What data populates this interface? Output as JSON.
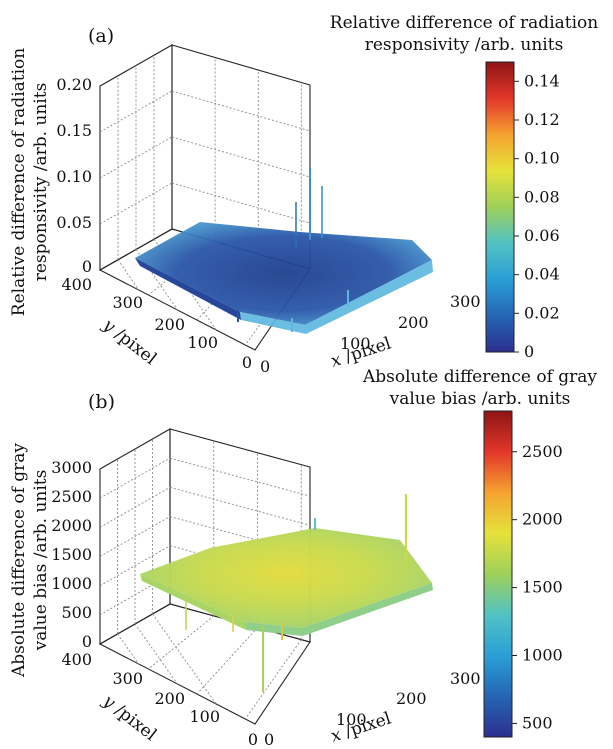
{
  "colors": {
    "colormap": [
      "#2c2f8f",
      "#2566b4",
      "#2a9fd6",
      "#52c2c4",
      "#9fd05a",
      "#e6e23a",
      "#f5a230",
      "#e2362a",
      "#8e1414"
    ],
    "panel_a_surface_main": "#2a4ea0",
    "panel_a_surface_edge": "#5bb7de",
    "panel_b_surface_main": "#b9d95a",
    "panel_b_surface_edge": "#7cc7a0"
  },
  "chart_data": [
    {
      "panel": "(a)",
      "type": "surface",
      "colorbar_title": [
        "Relative difference of radiation",
        "responsivity /arb. units"
      ],
      "zlabel": [
        "Relative difference of radiation",
        "responsivity /arb. units"
      ],
      "xlabel_var": "x",
      "xlabel_unit": " /pixel",
      "ylabel_var": "y",
      "ylabel_unit": " /pixel",
      "x_ticks": [
        "0",
        "100",
        "200",
        "300"
      ],
      "y_ticks": [
        "0",
        "100",
        "200",
        "300",
        "400"
      ],
      "z_ticks": [
        "0",
        "0.05",
        "0.10",
        "0.15",
        "0.20"
      ],
      "colorbar_ticks": [
        "0",
        "0.02",
        "0.04",
        "0.06",
        "0.08",
        "0.10",
        "0.12",
        "0.14"
      ],
      "xlim": [
        0,
        320
      ],
      "ylim": [
        0,
        400
      ],
      "zlim": [
        0,
        0.2
      ],
      "colorbar_range": [
        0,
        0.15
      ],
      "grid": true,
      "surface_description_values": {
        "typical_value": 0.02,
        "edge_value": 0.05,
        "spike_values": [
          0.11,
          0.09,
          0.08,
          0.07
        ]
      }
    },
    {
      "panel": "(b)",
      "type": "surface",
      "colorbar_title": [
        "Absolute difference of gray",
        "value bias /arb. units"
      ],
      "zlabel": [
        "Absolute difference of gray",
        "value bias /arb. units"
      ],
      "xlabel_var": "x",
      "xlabel_unit": " /pixel",
      "ylabel_var": "y",
      "ylabel_unit": " /pixel",
      "x_ticks": [
        "0",
        "100",
        "200",
        "300"
      ],
      "y_ticks": [
        "0",
        "100",
        "200",
        "300",
        "400"
      ],
      "z_ticks": [
        "0",
        "500",
        "1000",
        "1500",
        "2000",
        "2500",
        "3000"
      ],
      "colorbar_ticks": [
        "500",
        "1000",
        "1500",
        "2000",
        "2500"
      ],
      "xlim": [
        0,
        320
      ],
      "ylim": [
        0,
        400
      ],
      "zlim": [
        0,
        3000
      ],
      "colorbar_range": [
        400,
        2800
      ],
      "grid": true,
      "surface_description_values": {
        "center_value": 1800,
        "edge_value": 1400,
        "spike_values": [
          1900,
          300,
          200
        ]
      }
    }
  ]
}
